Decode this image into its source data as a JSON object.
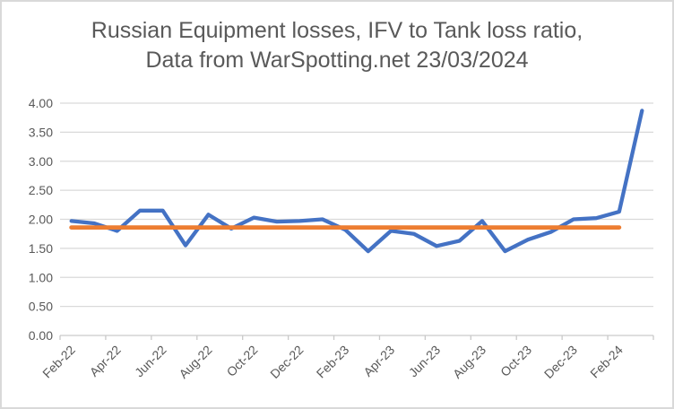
{
  "title": {
    "line1": "Russian Equipment losses, IFV to Tank loss ratio,",
    "line2": "Data from WarSpotting.net 23/03/2024"
  },
  "colors": {
    "series_line": "#4472C4",
    "reference_line": "#ED7D31",
    "gridline": "#D9D9D9",
    "axis_line": "#C9C9C9",
    "tick_text": "#595959",
    "title_text": "#595959",
    "background": "#FFFFFF",
    "border": "#D9D9D9"
  },
  "axes": {
    "y_tick_labels": [
      "0.00",
      "0.50",
      "1.00",
      "1.50",
      "2.00",
      "2.50",
      "3.00",
      "3.50",
      "4.00"
    ],
    "x_tick_labels": [
      "Feb-22",
      "Apr-22",
      "Jun-22",
      "Aug-22",
      "Oct-22",
      "Dec-22",
      "Feb-23",
      "Apr-23",
      "Jun-23",
      "Aug-23",
      "Oct-23",
      "Dec-23",
      "Feb-24"
    ]
  },
  "chart_data": {
    "type": "line",
    "title": "Russian Equipment losses, IFV to Tank loss ratio, Data from WarSpotting.net 23/03/2024",
    "categories": [
      "Feb-22",
      "Mar-22",
      "Apr-22",
      "May-22",
      "Jun-22",
      "Jul-22",
      "Aug-22",
      "Sep-22",
      "Oct-22",
      "Nov-22",
      "Dec-22",
      "Jan-23",
      "Feb-23",
      "Mar-23",
      "Apr-23",
      "May-23",
      "Jun-23",
      "Jul-23",
      "Aug-23",
      "Sep-23",
      "Oct-23",
      "Nov-23",
      "Dec-23",
      "Jan-24",
      "Feb-24",
      "Mar-24"
    ],
    "series": [
      {
        "name": "IFV to Tank loss ratio",
        "color": "#4472C4",
        "values": [
          1.97,
          1.93,
          1.8,
          2.15,
          2.15,
          1.55,
          2.08,
          1.84,
          2.03,
          1.96,
          1.97,
          2.0,
          1.82,
          1.45,
          1.8,
          1.75,
          1.54,
          1.63,
          1.97,
          1.45,
          1.65,
          1.78,
          2.0,
          2.02,
          2.13,
          3.87
        ]
      },
      {
        "name": "reference line (series average)",
        "color": "#ED7D31",
        "values": [
          1.86,
          1.86,
          1.86,
          1.86,
          1.86,
          1.86,
          1.86,
          1.86,
          1.86,
          1.86,
          1.86,
          1.86,
          1.86,
          1.86,
          1.86,
          1.86,
          1.86,
          1.86,
          1.86,
          1.86,
          1.86,
          1.86,
          1.86,
          1.86,
          1.86,
          null
        ]
      }
    ],
    "xlabel": "",
    "ylabel": "",
    "ylim": [
      0,
      4
    ],
    "y_tick_step": 0.5,
    "grid": "horizontal",
    "legend": "none",
    "x_label_rotation": -45,
    "x_labels_shown_every_n_months": 2
  }
}
